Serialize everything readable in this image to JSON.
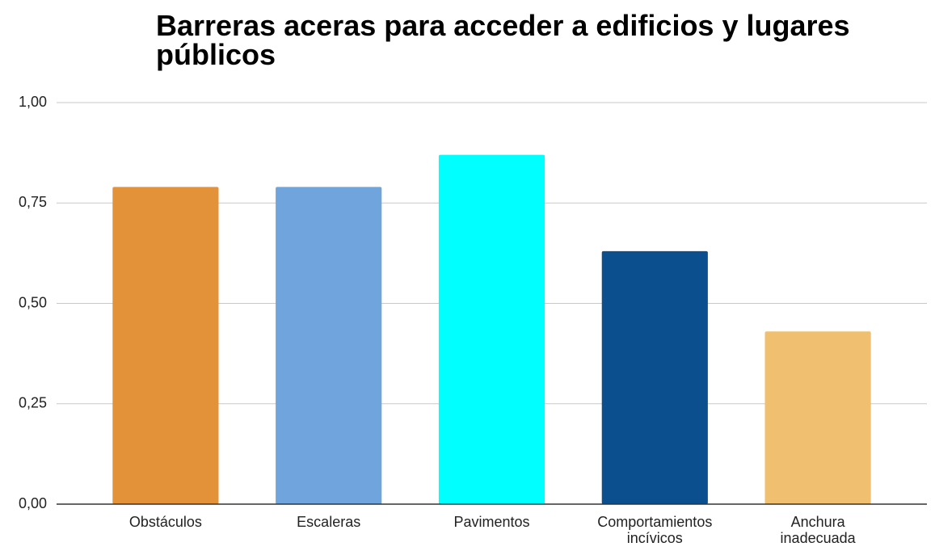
{
  "chart_data": {
    "type": "bar",
    "title": "Barreras aceras para acceder a edificios y lugares públicos",
    "categories": [
      "Obstáculos",
      "Escaleras",
      "Pavimentos",
      "Comportamientos incívicos",
      "Anchura inadecuada"
    ],
    "values": [
      0.79,
      0.79,
      0.87,
      0.63,
      0.43
    ],
    "colors": [
      "#e49239",
      "#6fa4dc",
      "#00ffff",
      "#0b4f8e",
      "#f0bf70"
    ],
    "ylim": [
      0,
      1
    ],
    "yticks": [
      {
        "value": 0,
        "label": "0,00"
      },
      {
        "value": 0.25,
        "label": "0,25"
      },
      {
        "value": 0.5,
        "label": "0,50"
      },
      {
        "value": 0.75,
        "label": "0,75"
      },
      {
        "value": 1,
        "label": "1,00"
      }
    ],
    "grid": true
  }
}
